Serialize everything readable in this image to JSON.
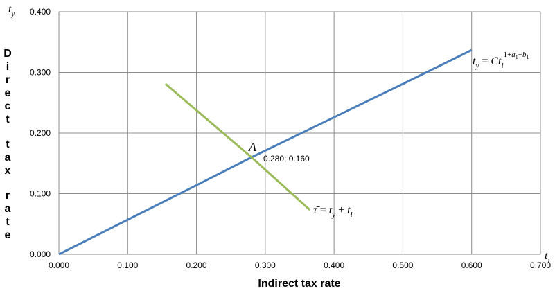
{
  "chart_data": {
    "type": "line",
    "xlabel": "Indirect tax rate",
    "ylabel": "Direct tax rate",
    "x_axis_symbol": "t",
    "x_axis_symbol_sub": "i",
    "y_axis_symbol": "t",
    "y_axis_symbol_sub": "y",
    "xlim": [
      0,
      0.7
    ],
    "ylim": [
      0,
      0.4
    ],
    "x_ticks": [
      "0.000",
      "0.100",
      "0.200",
      "0.300",
      "0.400",
      "0.500",
      "0.600",
      "0.700"
    ],
    "y_ticks": [
      "0.000",
      "0.100",
      "0.200",
      "0.300",
      "0.400"
    ],
    "grid": true,
    "series": [
      {
        "color": "#4a7ebb",
        "points": [
          [
            0.0,
            0.0
          ],
          [
            0.1,
            0.057
          ],
          [
            0.2,
            0.114
          ],
          [
            0.28,
            0.16
          ],
          [
            0.4,
            0.226
          ],
          [
            0.5,
            0.281
          ],
          [
            0.55,
            0.309
          ],
          [
            0.6,
            0.337
          ]
        ]
      },
      {
        "color": "#9bbb59",
        "points": [
          [
            0.155,
            0.281
          ],
          [
            0.28,
            0.16
          ],
          [
            0.365,
            0.073
          ]
        ]
      }
    ],
    "annotations": {
      "point_label": "A",
      "point_value": "0.280; 0.160",
      "point": [
        0.28,
        0.16
      ],
      "curve_label": {
        "t": "t",
        "t_sub": "y",
        "eq": " = ",
        "Ct": "Ct",
        "Ct_sub": "i",
        "exp_1": "1+",
        "exp_a": "a",
        "exp_a_sub": "1",
        "exp_minus": "−",
        "exp_b": "b",
        "exp_b_sub": "1"
      },
      "line_label": {
        "tau": "τ̄",
        "eq": " = ",
        "ty": "t̄",
        "ty_sub": "y",
        "plus": " + ",
        "ti": "t̄",
        "ti_sub": "i"
      }
    }
  }
}
